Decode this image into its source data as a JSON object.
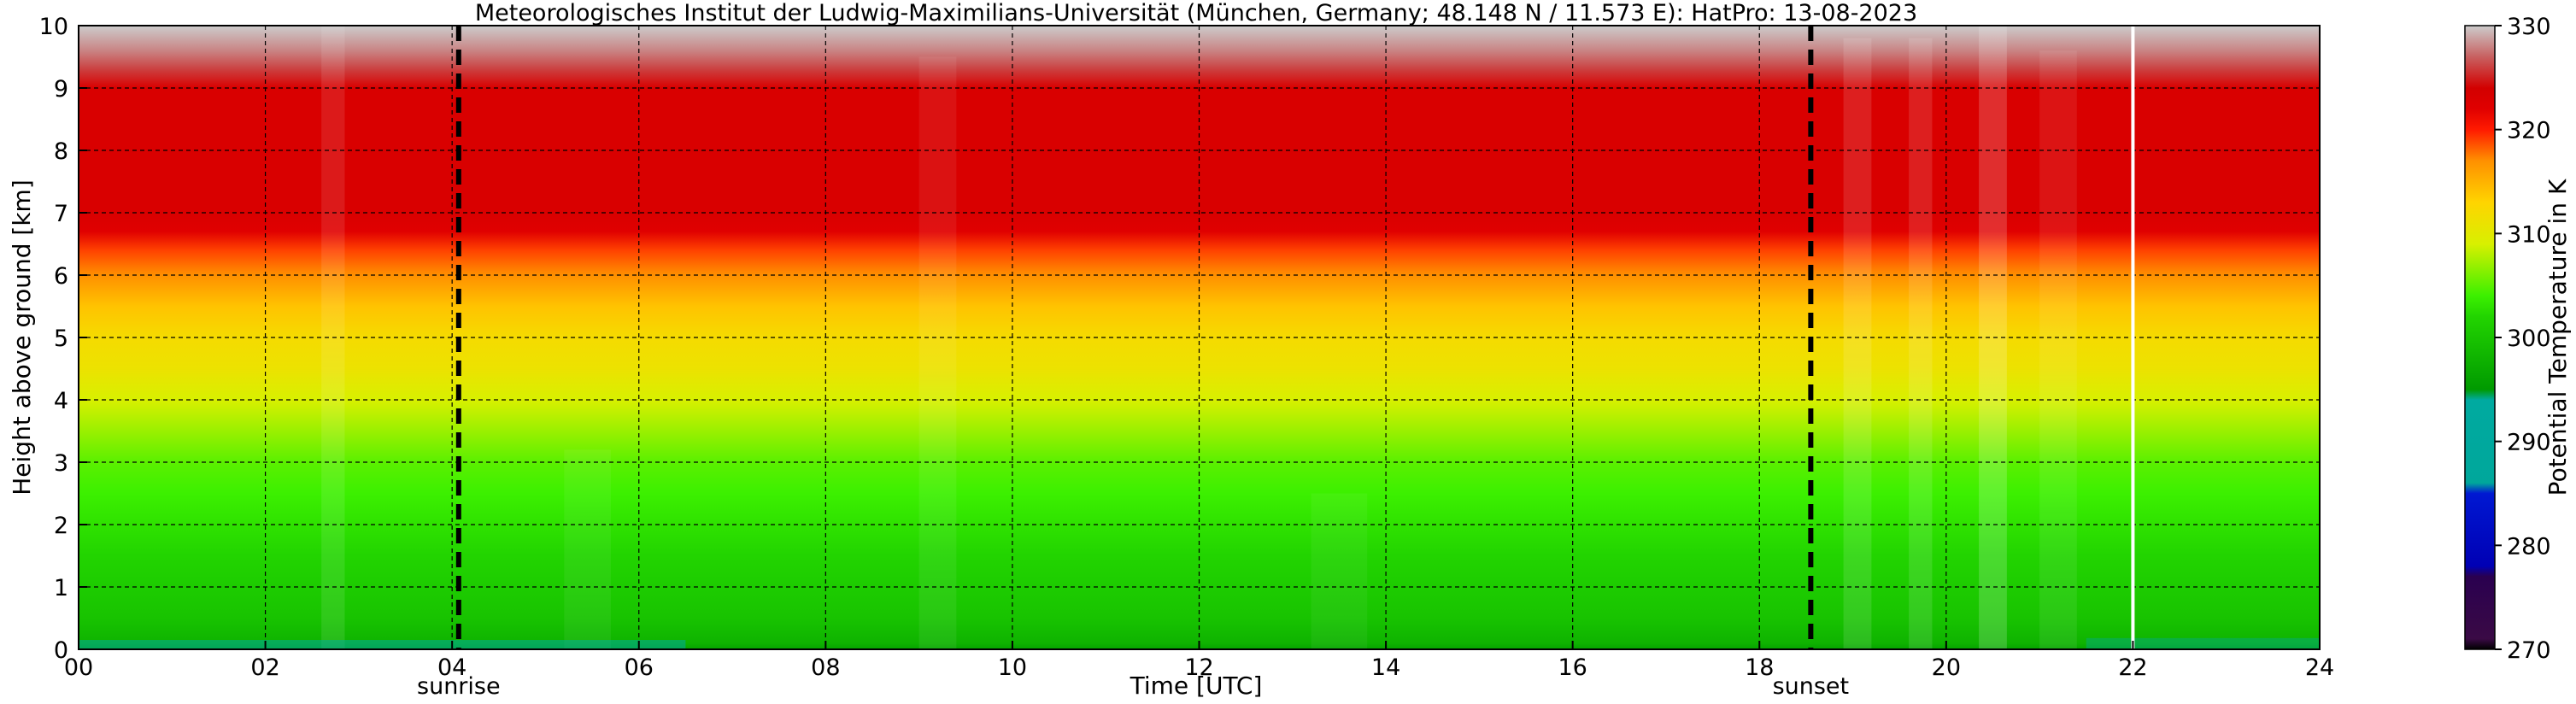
{
  "chart_data": {
    "type": "heatmap",
    "title": "Meteorologisches Institut der Ludwig-Maximilians-Universität (München, Germany; 48.148 N / 11.573 E):    HatPro: 13-08-2023",
    "xlabel": "Time [UTC]",
    "ylabel": "Height above ground [km]",
    "xlim": [
      0,
      24
    ],
    "ylim": [
      0,
      10
    ],
    "x_ticks": [
      "00",
      "02",
      "04",
      "06",
      "08",
      "10",
      "12",
      "14",
      "16",
      "18",
      "20",
      "22",
      "24"
    ],
    "x_tick_values": [
      0,
      2,
      4,
      6,
      8,
      10,
      12,
      14,
      16,
      18,
      20,
      22,
      24
    ],
    "y_ticks": [
      "0",
      "1",
      "2",
      "3",
      "4",
      "5",
      "6",
      "7",
      "8",
      "9",
      "10"
    ],
    "y_tick_values": [
      0,
      1,
      2,
      3,
      4,
      5,
      6,
      7,
      8,
      9,
      10
    ],
    "grid": true,
    "colorbar": {
      "label": "Potential Temperature in K",
      "range": [
        270,
        330
      ],
      "ticks": [
        "270",
        "280",
        "290",
        "300",
        "310",
        "320",
        "330"
      ],
      "tick_values": [
        270,
        280,
        290,
        300,
        310,
        320,
        330
      ],
      "stops": [
        {
          "value": 270,
          "color": "#000000"
        },
        {
          "value": 271,
          "color": "#3a0a45"
        },
        {
          "value": 277,
          "color": "#2a0050"
        },
        {
          "value": 278,
          "color": "#0000b4"
        },
        {
          "value": 285,
          "color": "#0018d2"
        },
        {
          "value": 286,
          "color": "#00a79b"
        },
        {
          "value": 294,
          "color": "#00aaa0"
        },
        {
          "value": 295,
          "color": "#009a00"
        },
        {
          "value": 302,
          "color": "#22d400"
        },
        {
          "value": 304,
          "color": "#3cf000"
        },
        {
          "value": 309,
          "color": "#d8f000"
        },
        {
          "value": 313,
          "color": "#ffd400"
        },
        {
          "value": 317,
          "color": "#ff9000"
        },
        {
          "value": 320,
          "color": "#ff1a00"
        },
        {
          "value": 322,
          "color": "#e00000"
        },
        {
          "value": 324,
          "color": "#d20000"
        },
        {
          "value": 327,
          "color": "#c86060"
        },
        {
          "value": 330,
          "color": "#cccccc"
        }
      ]
    },
    "profile": {
      "height_km": [
        0,
        0.1,
        0.3,
        0.5,
        1.0,
        1.5,
        2.0,
        2.5,
        3.0,
        3.5,
        4.0,
        4.5,
        5.0,
        5.5,
        6.0,
        6.4,
        6.7,
        7.0,
        8.0,
        9.0,
        9.3,
        9.6,
        10.0
      ],
      "theta_K": [
        296,
        298,
        299,
        300,
        301,
        302,
        303,
        304,
        305,
        307,
        309,
        311,
        312,
        314,
        317,
        319,
        322,
        323,
        323,
        323,
        326,
        328,
        330
      ]
    },
    "annotations": [
      {
        "label": "sunrise",
        "x": 4.07
      },
      {
        "label": "sunset",
        "x": 18.55
      }
    ],
    "marker_line_x": 22.0
  }
}
